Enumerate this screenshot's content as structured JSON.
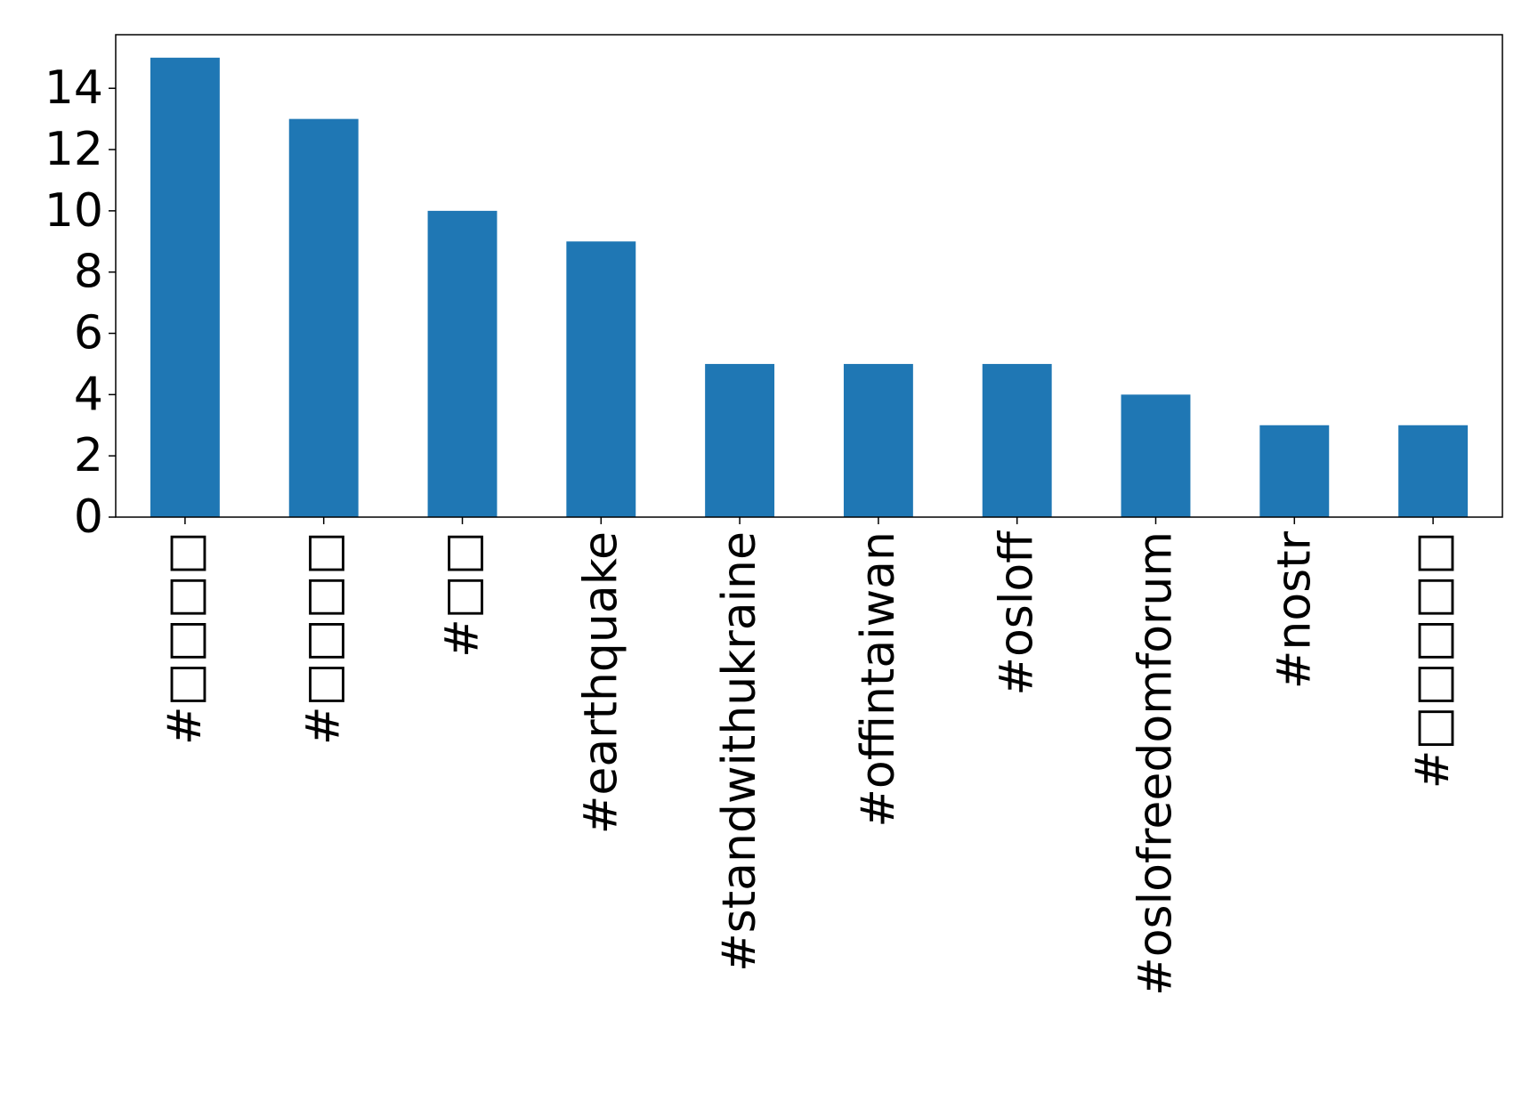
{
  "chart_data": {
    "type": "bar",
    "categories": [
      "#□□□□",
      "#□□□□",
      "#□□",
      "#earthquake",
      "#standwithukraine",
      "#offintaiwan",
      "#osloff",
      "#oslofreedomforum",
      "#nostr",
      "#□□□□□"
    ],
    "values": [
      15,
      13,
      10,
      9,
      5,
      5,
      5,
      4,
      3,
      3
    ],
    "yticks": [
      "0",
      "2",
      "4",
      "6",
      "8",
      "10",
      "12",
      "14"
    ],
    "ylim": [
      0,
      15.75
    ],
    "title": "",
    "xlabel": "",
    "ylabel": "",
    "grid": false,
    "bar_color": "#1f77b4"
  }
}
